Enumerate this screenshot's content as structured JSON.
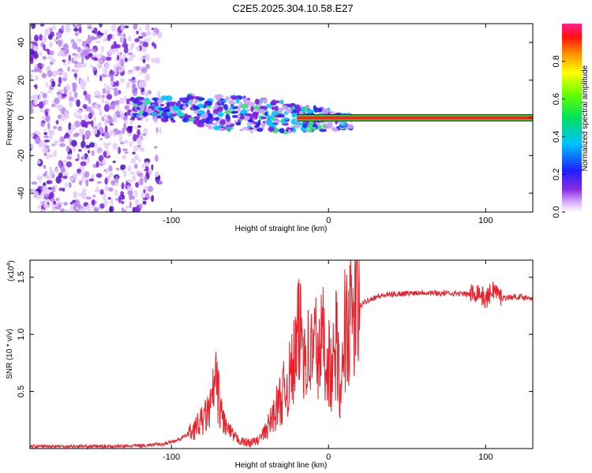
{
  "title": "C2E5.2025.304.10.58.E27",
  "colors": {
    "signal_line": "#e8202a",
    "axis": "#000000",
    "noise_purple": "#7a1ee0",
    "band_red": "#ff2020",
    "band_green": "#33dd33"
  },
  "colorbar": {
    "label": "Normalized spectral amplitude",
    "ticks": [
      "0.0",
      "0.2",
      "0.4",
      "0.6",
      "0.8"
    ],
    "tick_values": [
      0.0,
      0.2,
      0.4,
      0.6,
      0.8
    ],
    "range": [
      0,
      1
    ]
  },
  "chart_data": [
    {
      "type": "heatmap",
      "title": "C2E5.2025.304.10.58.E27",
      "xlabel": "Height of straight line (km)",
      "ylabel": "Frequency (Hz)",
      "xlim": [
        -190,
        130
      ],
      "ylim": [
        -50,
        50
      ],
      "xticks": [
        -100,
        0,
        100
      ],
      "xtick_labels": [
        "-100",
        "0",
        "100"
      ],
      "yticks": [
        -40,
        -20,
        0,
        20,
        40
      ],
      "ytick_labels": [
        "-40",
        "-20",
        "0",
        "20",
        "40"
      ],
      "regions": [
        {
          "name": "noise",
          "x_range": [
            -190,
            -107
          ],
          "f_range": [
            -50,
            50
          ],
          "amplitude": 0.2
        },
        {
          "name": "transition",
          "x_range": [
            -125,
            15
          ],
          "f_range": [
            -18,
            15
          ],
          "amplitude": 0.35
        },
        {
          "name": "carrier",
          "x_range": [
            -20,
            130
          ],
          "f_center": 0,
          "amplitude": 0.95
        }
      ]
    },
    {
      "type": "line",
      "xlabel": "Height of straight line (km)",
      "ylabel": "SNR (10 * v/v)",
      "yscale_label": "(x10",
      "yscale_exp": "4",
      "xlim": [
        -190,
        130
      ],
      "ylim": [
        0,
        1.65
      ],
      "xticks": [
        -100,
        0,
        100
      ],
      "xtick_labels": [
        "-100",
        "0",
        "100"
      ],
      "yticks": [
        0.5,
        1.0,
        1.5
      ],
      "ytick_labels": [
        "0.5",
        "1.0",
        "1.5"
      ],
      "series": [
        {
          "name": "SNR",
          "x": [
            -190,
            -160,
            -130,
            -115,
            -105,
            -95,
            -90,
            -85,
            -80,
            -75,
            -72,
            -70,
            -68,
            -65,
            -60,
            -55,
            -50,
            -45,
            -40,
            -35,
            -30,
            -25,
            -22,
            -20,
            -18,
            -16,
            -14,
            -12,
            -10,
            -8,
            -6,
            -4,
            -2,
            0,
            2,
            5,
            8,
            10,
            15,
            20,
            25,
            30,
            40,
            50,
            60,
            70,
            80,
            90,
            95,
            100,
            105,
            110,
            120,
            130
          ],
          "values": [
            0.02,
            0.02,
            0.02,
            0.03,
            0.04,
            0.08,
            0.12,
            0.18,
            0.25,
            0.35,
            0.6,
            0.45,
            0.3,
            0.18,
            0.1,
            0.06,
            0.05,
            0.07,
            0.15,
            0.3,
            0.45,
            0.6,
            0.75,
            0.9,
            1.05,
            0.95,
            0.85,
            0.8,
            0.85,
            0.95,
            0.75,
            1.0,
            0.85,
            0.8,
            0.6,
            0.95,
            0.35,
            1.05,
            1.15,
            1.25,
            1.3,
            1.33,
            1.35,
            1.36,
            1.37,
            1.36,
            1.36,
            1.35,
            1.38,
            1.3,
            1.4,
            1.32,
            1.33,
            1.32
          ]
        }
      ]
    }
  ]
}
